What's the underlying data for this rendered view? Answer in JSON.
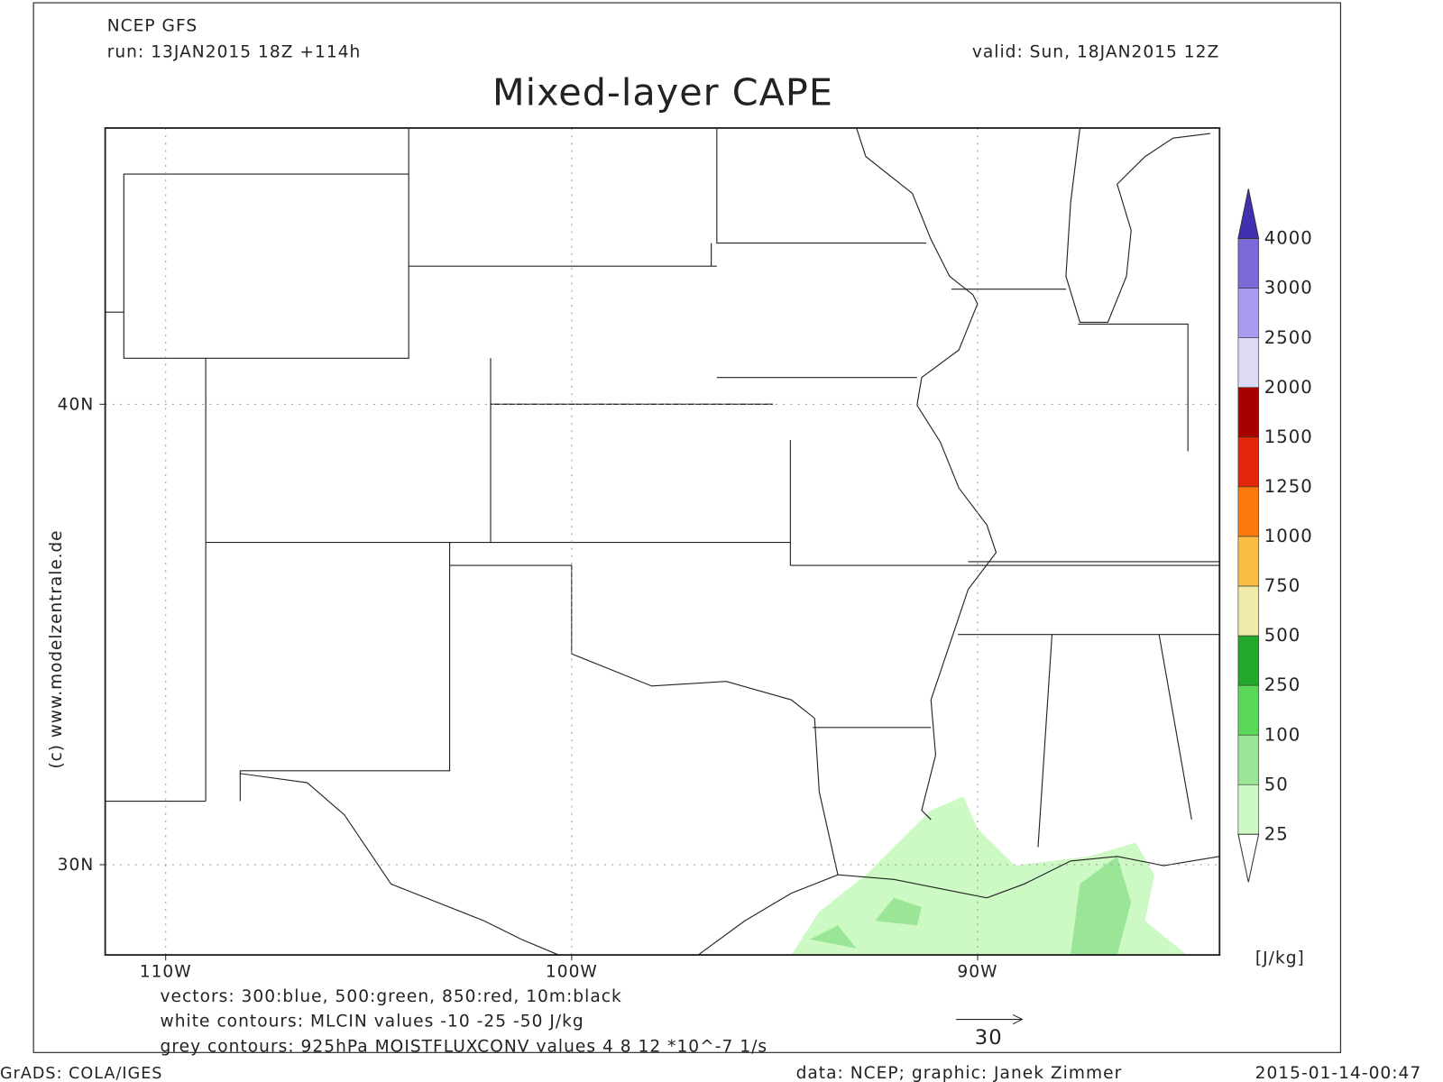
{
  "header": {
    "source": "NCEP GFS",
    "run": "run: 13JAN2015 18Z +114h",
    "valid": "valid: Sun, 18JAN2015 12Z"
  },
  "title": "Mixed-layer CAPE",
  "map": {
    "xlim": [
      -111.49,
      -84.04
    ],
    "ylim": [
      28.04,
      46
    ],
    "xticks": [
      {
        "value": -110,
        "label": "110W"
      },
      {
        "value": -100,
        "label": "100W"
      },
      {
        "value": -90,
        "label": "90W"
      }
    ],
    "yticks": [
      {
        "value": 30,
        "label": "30N"
      },
      {
        "value": 40,
        "label": "40N"
      }
    ]
  },
  "colorbar": {
    "levels": [
      25,
      50,
      100,
      250,
      500,
      750,
      1000,
      1250,
      1500,
      2000,
      2500,
      3000,
      4000
    ],
    "colors": [
      "#ccf9c4",
      "#9ae596",
      "#5ad85a",
      "#22a82a",
      "#f0eba8",
      "#fbbd45",
      "#fb7a0d",
      "#e3260a",
      "#a80000",
      "#dcdaf5",
      "#aa9af0",
      "#7c6ad8"
    ],
    "below_color": "#ffffff",
    "above_color": "#4230b3",
    "unit": "[J/kg]"
  },
  "legend": {
    "vectors": "vectors: 300:blue, 500:green, 850:red, 10m:black",
    "white_contours": "white contours: MLCIN values -10 -25 -50 J/kg",
    "grey_contours": "grey contours: 925hPa MOISTFLUXCONV values 4 8 12 *10^-7 1/s",
    "reference_vector": 30
  },
  "footer": {
    "software": "GrADS: COLA/IGES",
    "credit": "data: NCEP; graphic: Janek Zimmer",
    "timestamp": "2015-01-14-00:47",
    "copyright": "(c) www.modelzentrale.de"
  }
}
